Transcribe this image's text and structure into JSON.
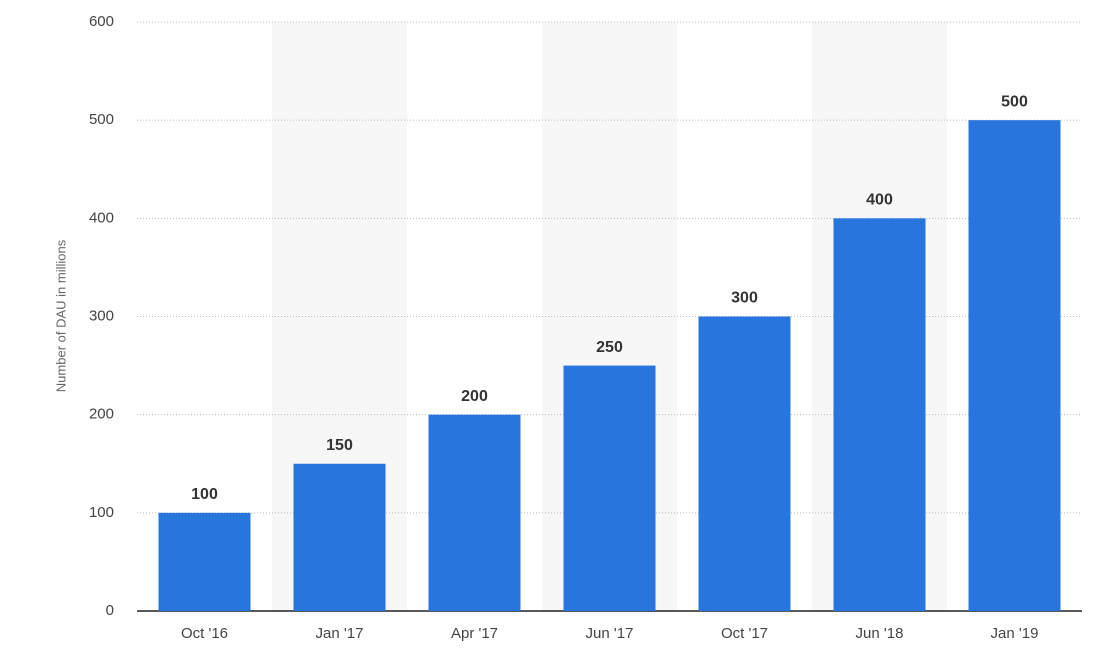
{
  "chart_data": {
    "type": "bar",
    "y_label": "Number of DAU in millions",
    "categories": [
      "Oct '16",
      "Jan '17",
      "Apr '17",
      "Jun '17",
      "Oct '17",
      "Jun '18",
      "Jan '19"
    ],
    "values": [
      100,
      150,
      200,
      250,
      300,
      400,
      500
    ],
    "color": "#2876dd",
    "ylim": [
      0,
      600
    ],
    "yticks": [
      0,
      100,
      200,
      300,
      400,
      500,
      600
    ],
    "grid": true
  }
}
